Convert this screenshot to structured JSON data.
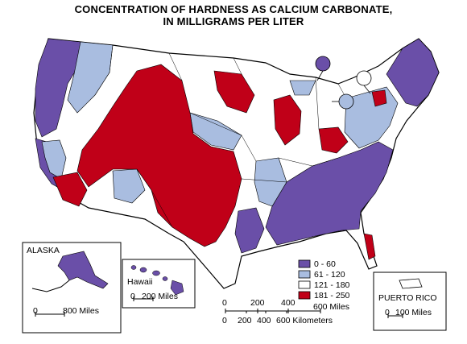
{
  "title_line1": "CONCENTRATION OF HARDNESS AS CALCIUM CARBONATE,",
  "title_line2": "IN MILLIGRAMS PER LITER",
  "colors": {
    "class_0_60": "#6a4fa8",
    "class_61_120": "#a9bde0",
    "class_121_180": "#ffffff",
    "class_181_250": "#c00018",
    "outline": "#000000"
  },
  "legend": {
    "items": [
      {
        "label": "0 - 60",
        "color": "#6a4fa8"
      },
      {
        "label": "61 - 120",
        "color": "#a9bde0"
      },
      {
        "label": "121 - 180",
        "color": "#ffffff"
      },
      {
        "label": "181 - 250",
        "color": "#c00018"
      }
    ]
  },
  "insets": {
    "alaska": {
      "label": "ALASKA",
      "scale_zero": "0",
      "scale_end": "800 Miles"
    },
    "hawaii": {
      "label": "Hawaii",
      "scale_zero": "0",
      "scale_end": "200 Miles"
    },
    "puerto_rico": {
      "label": "PUERTO RICO",
      "scale_zero": "0",
      "scale_end": "100 Miles"
    }
  },
  "main_scale": {
    "miles": [
      "0",
      "200",
      "400",
      "600 Miles"
    ],
    "kilometers": [
      "0",
      "200",
      "400",
      "600 Kilometers"
    ]
  }
}
